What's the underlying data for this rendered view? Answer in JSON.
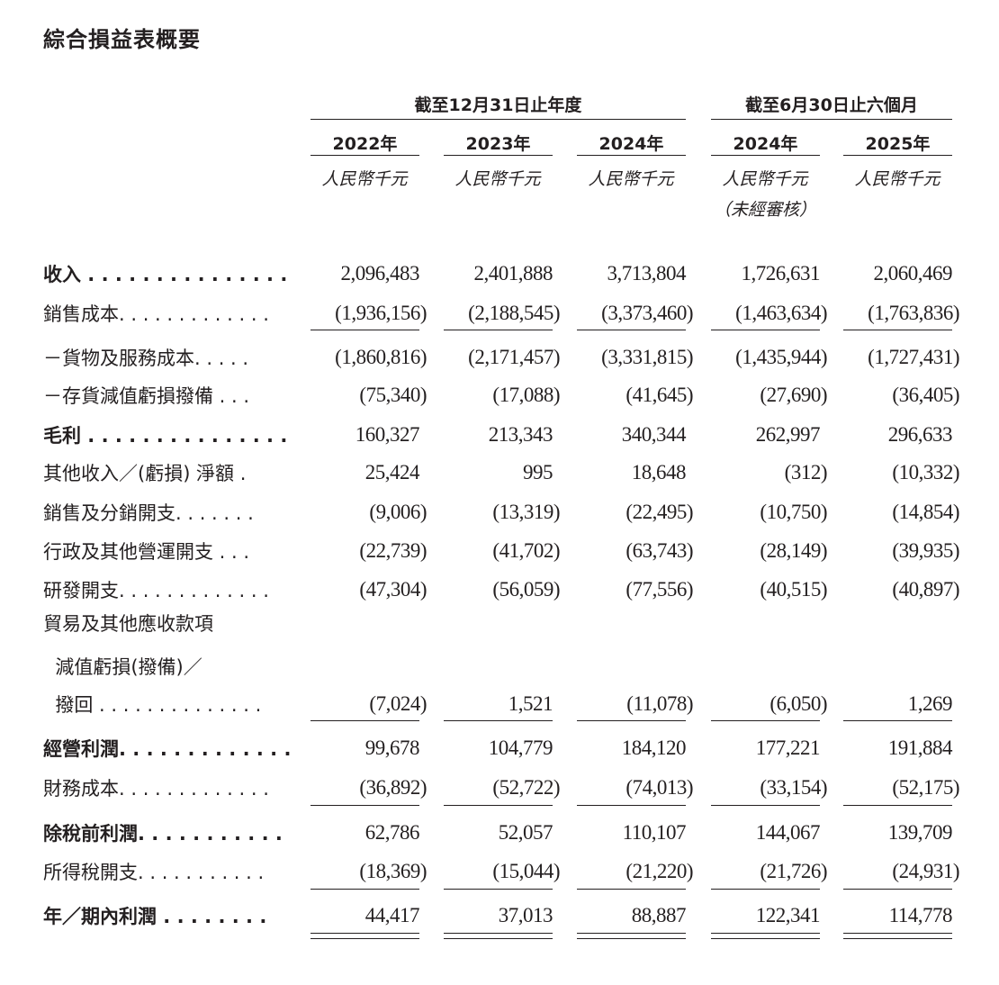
{
  "title": "綜合損益表概要",
  "header": {
    "group_annual": "截至12月31日止年度",
    "group_interim": "截至6月30日止六個月",
    "columns": [
      {
        "year": "2022年",
        "unit": "人民幣千元"
      },
      {
        "year": "2023年",
        "unit": "人民幣千元"
      },
      {
        "year": "2024年",
        "unit": "人民幣千元"
      },
      {
        "year": "2024年",
        "unit": "人民幣千元",
        "note": "（未經審核）"
      },
      {
        "year": "2025年",
        "unit": "人民幣千元"
      }
    ]
  },
  "rows": [
    {
      "label": "收入 . . . . . . . . . . . . . . .",
      "bold": true,
      "values": [
        "2,096,483",
        "2,401,888",
        "3,713,804",
        "1,726,631",
        "2,060,469"
      ]
    },
    {
      "label": "銷售成本. . . . . . . . . . . . .",
      "values": [
        "(1,936,156)",
        "(2,188,545)",
        "(3,373,460)",
        "(1,463,634)",
        "(1,763,836)"
      ]
    },
    {
      "label": "－貨物及服務成本. . . . .",
      "values": [
        "(1,860,816)",
        "(2,171,457)",
        "(3,331,815)",
        "(1,435,944)",
        "(1,727,431)"
      ]
    },
    {
      "label": "－存貨減值虧損撥備 . . .",
      "values": [
        "(75,340)",
        "(17,088)",
        "(41,645)",
        "(27,690)",
        "(36,405)"
      ]
    },
    {
      "label": "毛利 . . . . . . . . . . . . . . .",
      "bold": true,
      "values": [
        "160,327",
        "213,343",
        "340,344",
        "262,997",
        "296,633"
      ]
    },
    {
      "label": "其他收入／(虧損) 淨額 .",
      "values": [
        "25,424",
        "995",
        "18,648",
        "(312)",
        "(10,332)"
      ]
    },
    {
      "label": "銷售及分銷開支. . . . . . .",
      "values": [
        "(9,006)",
        "(13,319)",
        "(22,495)",
        "(10,750)",
        "(14,854)"
      ]
    },
    {
      "label": "行政及其他營運開支 . . .",
      "values": [
        "(22,739)",
        "(41,702)",
        "(63,743)",
        "(28,149)",
        "(39,935)"
      ]
    },
    {
      "label": "研發開支. . . . . . . . . . . . .",
      "values": [
        "(47,304)",
        "(56,059)",
        "(77,556)",
        "(40,515)",
        "(40,897)"
      ]
    },
    {
      "label": "貿易及其他應收款項",
      "values": []
    },
    {
      "label": "  減值虧損(撥備)／",
      "values": []
    },
    {
      "label": "  撥回 . . . . . . . . . . . . . .",
      "values": [
        "(7,024)",
        "1,521",
        "(11,078)",
        "(6,050)",
        "1,269"
      ]
    },
    {
      "label": "經營利潤. . . . . . . . . . . . .",
      "bold": true,
      "values": [
        "99,678",
        "104,779",
        "184,120",
        "177,221",
        "191,884"
      ]
    },
    {
      "label": "財務成本. . . . . . . . . . . . .",
      "values": [
        "(36,892)",
        "(52,722)",
        "(74,013)",
        "(33,154)",
        "(52,175)"
      ]
    },
    {
      "label": "除稅前利潤. . . . . . . . . . .",
      "bold": true,
      "values": [
        "62,786",
        "52,057",
        "110,107",
        "144,067",
        "139,709"
      ]
    },
    {
      "label": "所得稅開支. . . . . . . . . . .",
      "values": [
        "(18,369)",
        "(15,044)",
        "(21,220)",
        "(21,726)",
        "(24,931)"
      ]
    },
    {
      "label": "年／期內利潤 . . . . . . . .",
      "bold": true,
      "values": [
        "44,417",
        "37,013",
        "88,887",
        "122,341",
        "114,778"
      ]
    }
  ]
}
